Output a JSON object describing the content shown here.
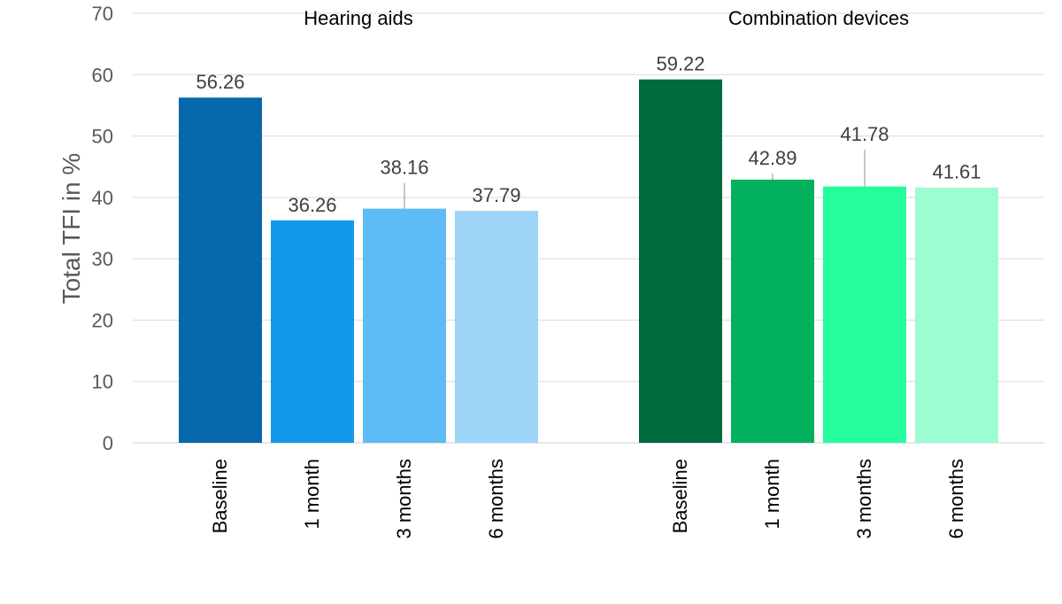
{
  "chart_data": {
    "type": "bar",
    "ylabel": "Total TFI in %",
    "ylim": [
      0,
      70
    ],
    "yticks": [
      0,
      10,
      20,
      30,
      40,
      50,
      60,
      70
    ],
    "grid": true,
    "groups": [
      {
        "name": "Hearing aids",
        "categories": [
          "Baseline",
          "1 month",
          "3 months",
          "6 months"
        ],
        "values": [
          56.26,
          36.26,
          38.16,
          37.79
        ],
        "labels": [
          "56.26",
          "36.26",
          "38.16",
          "37.79"
        ],
        "colors": [
          "#0868ac",
          "#1399ec",
          "#5dbbf5",
          "#9dd4f8"
        ],
        "error_bars": [
          null,
          null,
          4.2,
          null
        ]
      },
      {
        "name": "Combination devices",
        "categories": [
          "Baseline",
          "1 month",
          "3 months",
          "6 months"
        ],
        "values": [
          59.22,
          42.89,
          41.78,
          41.61
        ],
        "labels": [
          "59.22",
          "42.89",
          "41.78",
          "41.61"
        ],
        "colors": [
          "#006b3c",
          "#02b05e",
          "#25fc9e",
          "#9cfcd2"
        ],
        "error_bars": [
          null,
          1.0,
          6.0,
          null
        ]
      }
    ]
  }
}
